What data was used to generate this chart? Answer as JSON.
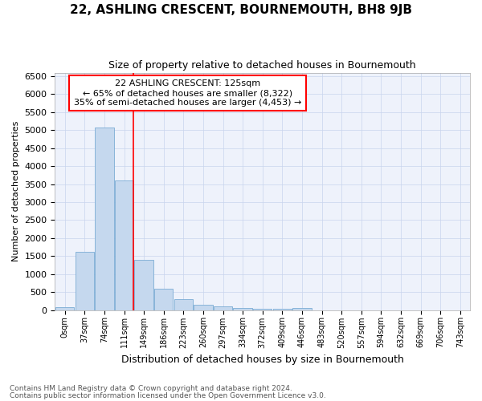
{
  "title": "22, ASHLING CRESCENT, BOURNEMOUTH, BH8 9JB",
  "subtitle": "Size of property relative to detached houses in Bournemouth",
  "xlabel": "Distribution of detached houses by size in Bournemouth",
  "ylabel": "Number of detached properties",
  "bar_color": "#c5d8ee",
  "bar_edge_color": "#7bacd4",
  "background_color": "#eef2fb",
  "grid_color": "#c8d4ee",
  "categories": [
    "0sqm",
    "37sqm",
    "74sqm",
    "111sqm",
    "149sqm",
    "186sqm",
    "223sqm",
    "260sqm",
    "297sqm",
    "334sqm",
    "372sqm",
    "409sqm",
    "446sqm",
    "483sqm",
    "520sqm",
    "557sqm",
    "594sqm",
    "632sqm",
    "669sqm",
    "706sqm",
    "743sqm"
  ],
  "values": [
    70,
    1620,
    5080,
    3600,
    1400,
    590,
    305,
    150,
    90,
    50,
    35,
    25,
    50,
    0,
    0,
    0,
    0,
    0,
    0,
    0,
    0
  ],
  "ylim": [
    0,
    6600
  ],
  "yticks": [
    0,
    500,
    1000,
    1500,
    2000,
    2500,
    3000,
    3500,
    4000,
    4500,
    5000,
    5500,
    6000,
    6500
  ],
  "property_line_x": 3.45,
  "annotation_title": "22 ASHLING CRESCENT: 125sqm",
  "annotation_line1": "← 65% of detached houses are smaller (8,322)",
  "annotation_line2": "35% of semi-detached houses are larger (4,453) →",
  "footer1": "Contains HM Land Registry data © Crown copyright and database right 2024.",
  "footer2": "Contains public sector information licensed under the Open Government Licence v3.0.",
  "title_fontsize": 11,
  "subtitle_fontsize": 9,
  "ylabel_fontsize": 8,
  "xlabel_fontsize": 9,
  "tick_fontsize": 7,
  "ytick_fontsize": 8,
  "annotation_fontsize": 8,
  "footer_fontsize": 6.5
}
